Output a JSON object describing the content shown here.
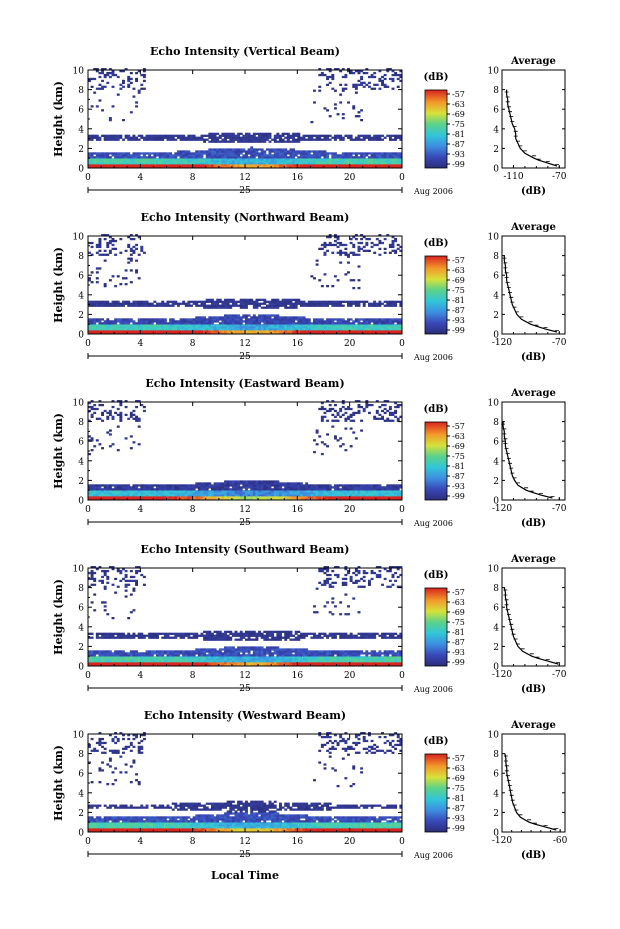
{
  "xlabel": "Local Time",
  "chart_data": [
    {
      "type": "heatmap",
      "title": "Echo Intensity (Vertical Beam)",
      "ylabel": "Height (km)",
      "xticks": [
        "0",
        "4",
        "8",
        "12",
        "16",
        "20",
        "0"
      ],
      "yticks": [
        "0",
        "2",
        "4",
        "6",
        "8",
        "10"
      ],
      "xlim": [
        0,
        24
      ],
      "ylim": [
        0,
        10
      ],
      "day_label": "25",
      "date_label": "Aug 2006",
      "colorbar": {
        "unit": "(dB)",
        "ticks": [
          "-57",
          "-63",
          "-69",
          "-75",
          "-81",
          "-87",
          "-93",
          "-99"
        ]
      },
      "layers": [
        {
          "height_km": 0.4,
          "db": -65
        },
        {
          "height_km": 1.0,
          "db": -84
        },
        {
          "height_km": 1.5,
          "db": -93
        },
        {
          "height_km": 3.0,
          "db": -97
        },
        {
          "height_km": 9.3,
          "db": -99
        }
      ],
      "profile": {
        "title": "Average",
        "xlabel": "(dB)",
        "xticks": [
          "-110",
          "-70"
        ],
        "xlim": [
          -120,
          -65
        ],
        "yticks": [
          "0",
          "2",
          "4",
          "6",
          "8",
          "10"
        ],
        "ylim": [
          0,
          10
        ],
        "height_km": [
          0.2,
          0.5,
          0.8,
          1.0,
          1.5,
          2.0,
          2.5,
          3.0,
          3.5,
          4.0,
          4.5,
          5.0,
          5.5,
          6.0,
          6.5,
          7.0,
          7.5,
          8.0
        ],
        "db": [
          -72,
          -80,
          -88,
          -92,
          -100,
          -104,
          -106,
          -108,
          -108,
          -109,
          -111,
          -112,
          -113,
          -114,
          -115,
          -115,
          -116,
          -116
        ]
      }
    },
    {
      "type": "heatmap",
      "title": "Echo Intensity (Northward Beam)",
      "ylabel": "Height (km)",
      "xticks": [
        "0",
        "4",
        "8",
        "12",
        "16",
        "20",
        "0"
      ],
      "yticks": [
        "0",
        "2",
        "4",
        "6",
        "8",
        "10"
      ],
      "xlim": [
        0,
        24
      ],
      "ylim": [
        0,
        10
      ],
      "day_label": "25",
      "date_label": "Aug 2006",
      "colorbar": {
        "unit": "(dB)",
        "ticks": [
          "-57",
          "-63",
          "-69",
          "-75",
          "-81",
          "-87",
          "-93",
          "-99"
        ]
      },
      "layers": [
        {
          "height_km": 0.4,
          "db": -66
        },
        {
          "height_km": 0.9,
          "db": -85
        },
        {
          "height_km": 1.4,
          "db": -94
        },
        {
          "height_km": 3.0,
          "db": -97
        },
        {
          "height_km": 8.8,
          "db": -99
        }
      ],
      "profile": {
        "title": "Average",
        "xlabel": "(dB)",
        "xticks": [
          "-120",
          "-70"
        ],
        "xlim": [
          -120,
          -65
        ],
        "yticks": [
          "0",
          "2",
          "4",
          "6",
          "8",
          "10"
        ],
        "ylim": [
          0,
          10
        ],
        "height_km": [
          0.2,
          0.5,
          0.8,
          1.0,
          1.5,
          2.0,
          2.5,
          3.0,
          3.5,
          4.0,
          4.5,
          5.0,
          5.5,
          6.0,
          6.5,
          7.0,
          7.5,
          8.0
        ],
        "db": [
          -72,
          -82,
          -90,
          -95,
          -103,
          -107,
          -109,
          -111,
          -112,
          -113,
          -114,
          -115,
          -116,
          -116,
          -117,
          -117,
          -118,
          -118
        ]
      }
    },
    {
      "type": "heatmap",
      "title": "Echo Intensity (Eastward Beam)",
      "ylabel": "Height (km)",
      "xticks": [
        "0",
        "4",
        "8",
        "12",
        "16",
        "20",
        "0"
      ],
      "yticks": [
        "0",
        "2",
        "4",
        "6",
        "8",
        "10"
      ],
      "xlim": [
        0,
        24
      ],
      "ylim": [
        0,
        10
      ],
      "day_label": "25",
      "date_label": "Aug 2006",
      "colorbar": {
        "unit": "(dB)",
        "ticks": [
          "-57",
          "-63",
          "-69",
          "-75",
          "-81",
          "-87",
          "-93",
          "-99"
        ]
      },
      "layers": [
        {
          "height_km": 0.4,
          "db": -72
        },
        {
          "height_km": 0.9,
          "db": -88
        },
        {
          "height_km": 1.4,
          "db": -96
        },
        {
          "height_km": 9.5,
          "db": -99
        }
      ],
      "profile": {
        "title": "Average",
        "xlabel": "(dB)",
        "xticks": [
          "-120",
          "-70"
        ],
        "xlim": [
          -120,
          -65
        ],
        "yticks": [
          "0",
          "2",
          "4",
          "6",
          "8",
          "10"
        ],
        "ylim": [
          0,
          10
        ],
        "height_km": [
          0.2,
          0.5,
          0.8,
          1.0,
          1.5,
          2.0,
          2.5,
          3.0,
          3.5,
          4.0,
          4.5,
          5.0,
          5.5,
          6.0,
          6.5,
          7.0,
          7.5,
          8.0
        ],
        "db": [
          -76,
          -86,
          -94,
          -99,
          -106,
          -109,
          -111,
          -112,
          -113,
          -114,
          -115,
          -116,
          -117,
          -117,
          -118,
          -118,
          -119,
          -119
        ]
      }
    },
    {
      "type": "heatmap",
      "title": "Echo Intensity (Southward Beam)",
      "ylabel": "Height (km)",
      "xticks": [
        "0",
        "4",
        "8",
        "12",
        "16",
        "20",
        "0"
      ],
      "yticks": [
        "0",
        "2",
        "4",
        "6",
        "8",
        "10"
      ],
      "xlim": [
        0,
        24
      ],
      "ylim": [
        0,
        10
      ],
      "day_label": "25",
      "date_label": "Aug 2006",
      "colorbar": {
        "unit": "(dB)",
        "ticks": [
          "-57",
          "-63",
          "-69",
          "-75",
          "-81",
          "-87",
          "-93",
          "-99"
        ]
      },
      "layers": [
        {
          "height_km": 0.4,
          "db": -65
        },
        {
          "height_km": 0.9,
          "db": -84
        },
        {
          "height_km": 1.4,
          "db": -93
        },
        {
          "height_km": 3.0,
          "db": -97
        },
        {
          "height_km": 8.9,
          "db": -99
        }
      ],
      "profile": {
        "title": "Average",
        "xlabel": "(dB)",
        "xticks": [
          "-120",
          "-70"
        ],
        "xlim": [
          -120,
          -65
        ],
        "yticks": [
          "0",
          "2",
          "4",
          "6",
          "8",
          "10"
        ],
        "ylim": [
          0,
          10
        ],
        "height_km": [
          0.2,
          0.5,
          0.8,
          1.0,
          1.5,
          2.0,
          2.5,
          3.0,
          3.5,
          4.0,
          4.5,
          5.0,
          5.5,
          6.0,
          6.5,
          7.0,
          7.5,
          8.0
        ],
        "db": [
          -71,
          -80,
          -89,
          -94,
          -102,
          -106,
          -108,
          -110,
          -111,
          -112,
          -113,
          -114,
          -115,
          -116,
          -116,
          -117,
          -117,
          -118
        ]
      }
    },
    {
      "type": "heatmap",
      "title": "Echo Intensity (Westward Beam)",
      "ylabel": "Height (km)",
      "xticks": [
        "0",
        "4",
        "8",
        "12",
        "16",
        "20",
        "0"
      ],
      "yticks": [
        "0",
        "2",
        "4",
        "6",
        "8",
        "10"
      ],
      "xlim": [
        0,
        24
      ],
      "ylim": [
        0,
        10
      ],
      "day_label": "25",
      "date_label": "Aug 2006",
      "colorbar": {
        "unit": "(dB)",
        "ticks": [
          "-57",
          "-63",
          "-69",
          "-75",
          "-81",
          "-87",
          "-93",
          "-99"
        ]
      },
      "layers": [
        {
          "height_km": 0.4,
          "db": -68
        },
        {
          "height_km": 0.9,
          "db": -84
        },
        {
          "height_km": 1.4,
          "db": -93
        },
        {
          "height_km": 2.5,
          "db": -97
        },
        {
          "height_km": 9.0,
          "db": -99
        }
      ],
      "profile": {
        "title": "Average",
        "xlabel": "(dB)",
        "xticks": [
          "-120",
          "-60"
        ],
        "xlim": [
          -120,
          -55
        ],
        "yticks": [
          "0",
          "2",
          "4",
          "6",
          "8",
          "10"
        ],
        "ylim": [
          0,
          10
        ],
        "height_km": [
          0.2,
          0.5,
          0.8,
          1.0,
          1.5,
          2.0,
          2.5,
          3.0,
          3.5,
          4.0,
          4.5,
          5.0,
          5.5,
          6.0,
          6.5,
          7.0,
          7.5,
          8.0
        ],
        "db": [
          -64,
          -75,
          -86,
          -92,
          -101,
          -105,
          -107,
          -109,
          -110,
          -111,
          -112,
          -113,
          -114,
          -115,
          -115,
          -116,
          -116,
          -117
        ]
      }
    }
  ]
}
